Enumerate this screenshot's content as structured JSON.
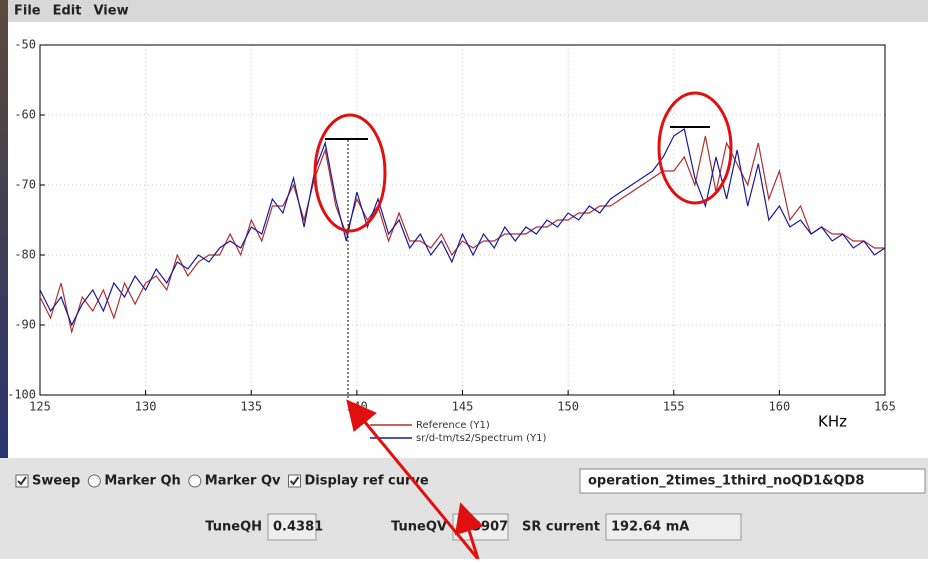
{
  "menu": [
    "File",
    "Edit",
    "View"
  ],
  "chart_data": {
    "type": "line",
    "x_label": "KHz",
    "xlim": [
      125,
      165
    ],
    "xticks": [
      125,
      130,
      135,
      140,
      145,
      150,
      155,
      160,
      165
    ],
    "ylim": [
      -100,
      -50
    ],
    "yticks": [
      -100,
      -90,
      -80,
      -70,
      -60,
      -50
    ],
    "grid": true,
    "x": [
      125,
      125.5,
      126,
      126.5,
      127,
      127.5,
      128,
      128.5,
      129,
      129.5,
      130,
      130.5,
      131,
      131.5,
      132,
      132.5,
      133,
      133.5,
      134,
      134.5,
      135,
      135.5,
      136,
      136.5,
      137,
      137.5,
      138,
      138.5,
      139,
      139.5,
      140,
      140.5,
      141,
      141.5,
      142,
      142.5,
      143,
      143.5,
      144,
      144.5,
      145,
      145.5,
      146,
      146.5,
      147,
      147.5,
      148,
      148.5,
      149,
      149.5,
      150,
      150.5,
      151,
      151.5,
      152,
      152.5,
      153,
      153.5,
      154,
      154.5,
      155,
      155.5,
      156,
      156.5,
      157,
      157.5,
      158,
      158.5,
      159,
      159.5,
      160,
      160.5,
      161,
      161.5,
      162,
      162.5,
      163,
      163.5,
      164,
      164.5,
      165
    ],
    "series": [
      {
        "name": "Reference (Y1)",
        "color": "#b03030",
        "values": [
          -86,
          -89,
          -84,
          -91,
          -86,
          -88,
          -85,
          -89,
          -84,
          -87,
          -84,
          -83,
          -85,
          -80,
          -83,
          -81,
          -80,
          -80,
          -77,
          -80,
          -75,
          -78,
          -73,
          -73,
          -70,
          -75,
          -69,
          -65,
          -73,
          -77,
          -72,
          -75,
          -73,
          -78,
          -74,
          -78,
          -78,
          -79,
          -77,
          -80,
          -78,
          -79,
          -78,
          -78,
          -77,
          -77,
          -77,
          -76,
          -76,
          -75,
          -75,
          -74,
          -74,
          -73,
          -73,
          -72,
          -71,
          -70,
          -69,
          -68,
          -68,
          -66,
          -70,
          -63,
          -71,
          -64,
          -67,
          -70,
          -64,
          -72,
          -68,
          -75,
          -73,
          -77,
          -76,
          -77,
          -77,
          -78,
          -78,
          -79,
          -79
        ]
      },
      {
        "name": "sr/d-tm/ts2/Spectrum (Y1)",
        "color": "#1a1a9c",
        "values": [
          -85,
          -88,
          -86,
          -90,
          -87,
          -85,
          -88,
          -84,
          -86,
          -83,
          -85,
          -82,
          -84,
          -81,
          -82,
          -80,
          -81,
          -79,
          -78,
          -79,
          -76,
          -77,
          -72,
          -74,
          -69,
          -76,
          -68,
          -64,
          -72,
          -78,
          -71,
          -76,
          -72,
          -77,
          -75,
          -79,
          -77,
          -80,
          -78,
          -81,
          -77,
          -80,
          -77,
          -79,
          -76,
          -78,
          -76,
          -77,
          -75,
          -76,
          -74,
          -75,
          -73,
          -74,
          -72,
          -71,
          -70,
          -69,
          -68,
          -66,
          -63,
          -62,
          -69,
          -73,
          -66,
          -72,
          -65,
          -73,
          -67,
          -75,
          -73,
          -76,
          -75,
          -77,
          -76,
          -78,
          -77,
          -79,
          -78,
          -80,
          -79
        ]
      }
    ]
  },
  "controls": [
    {
      "label": "Sweep",
      "kind": "check",
      "checked": true
    },
    {
      "label": "Marker Qh",
      "kind": "radio",
      "checked": false
    },
    {
      "label": "Marker Qv",
      "kind": "radio",
      "checked": false
    },
    {
      "label": "Display ref curve",
      "kind": "check",
      "checked": true
    }
  ],
  "preset": "operation_2times_1third_noQD1&QD8",
  "readouts": [
    {
      "label": "TuneQH",
      "value": "0.4381"
    },
    {
      "label": "TuneQV",
      "value": "0.3907"
    },
    {
      "label": "SR current",
      "value": "192.64 mA"
    }
  ]
}
